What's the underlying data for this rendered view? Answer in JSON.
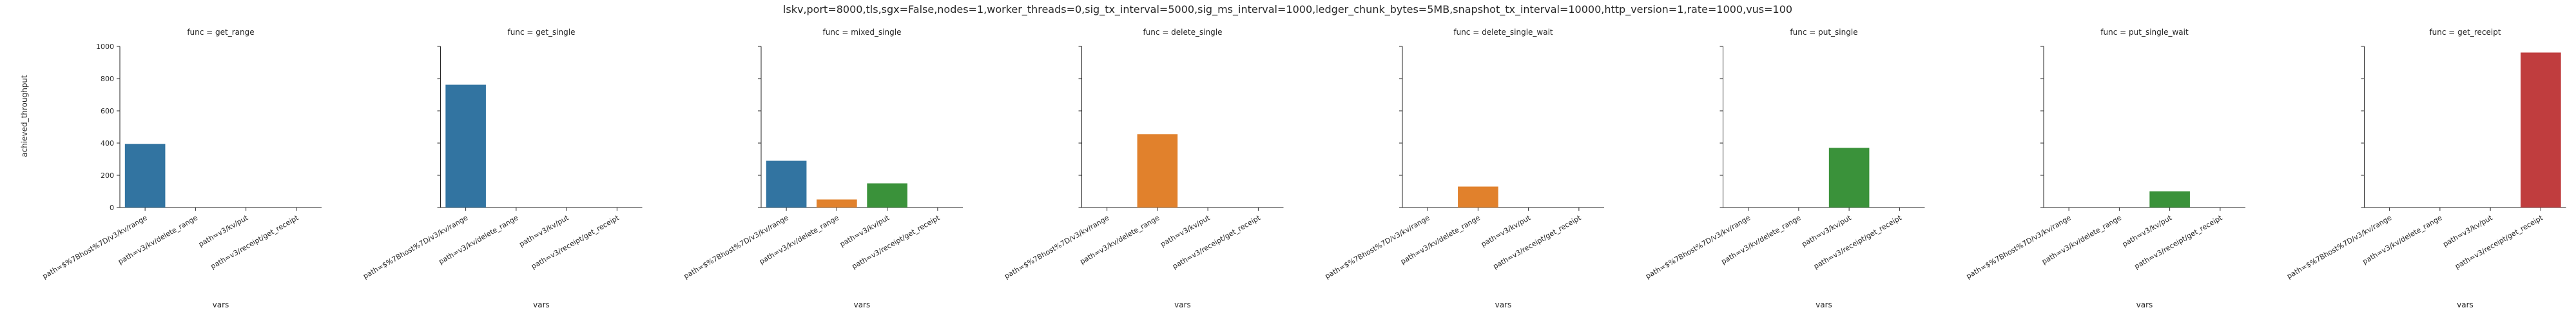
{
  "chart_data": {
    "type": "bar",
    "suptitle": "lskv,port=8000,tls,sgx=False,nodes=1,worker_threads=0,sig_tx_interval=5000,sig_ms_interval=1000,ledger_chunk_bytes=5MB,snapshot_tx_interval=10000,http_version=1,rate=1000,vus=100",
    "xlabel": "vars",
    "ylabel": "achieved_throughput",
    "ylim": [
      0,
      1000
    ],
    "yticks": [
      "0",
      "200",
      "400",
      "600",
      "800",
      "1000"
    ],
    "categories": [
      "path=$%7Bhost%7D/v3/kv/range",
      "path=v3/kv/delete_range",
      "path=v3/kv/put",
      "path=v3/receipt/get_receipt"
    ],
    "colors": [
      "#3274a1",
      "#e1812c",
      "#3a923a",
      "#c03d3e"
    ],
    "panels": [
      {
        "title": "func = get_range",
        "values": [
          395,
          null,
          null,
          null
        ]
      },
      {
        "title": "func = get_single",
        "values": [
          762,
          null,
          null,
          null
        ]
      },
      {
        "title": "func = mixed_single",
        "values": [
          290,
          50,
          150,
          null
        ]
      },
      {
        "title": "func = delete_single",
        "values": [
          null,
          455,
          null,
          null
        ]
      },
      {
        "title": "func = delete_single_wait",
        "values": [
          null,
          130,
          null,
          null
        ]
      },
      {
        "title": "func = put_single",
        "values": [
          null,
          null,
          370,
          null
        ]
      },
      {
        "title": "func = put_single_wait",
        "values": [
          null,
          null,
          100,
          null
        ]
      },
      {
        "title": "func = get_receipt",
        "values": [
          null,
          null,
          null,
          962
        ]
      }
    ]
  }
}
